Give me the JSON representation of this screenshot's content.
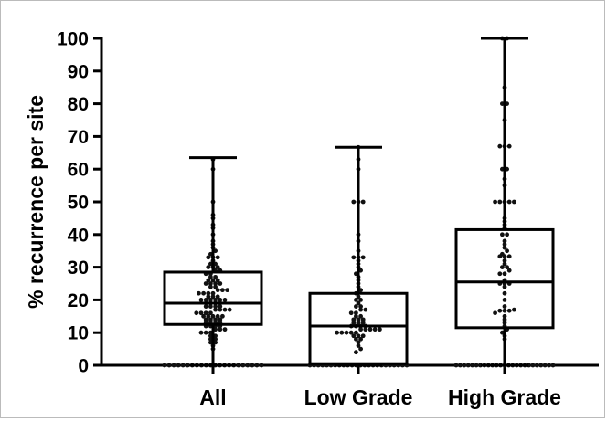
{
  "chart_data": {
    "type": "box",
    "title": "",
    "xlabel": "",
    "ylabel": "% recurrence per site",
    "ylim": [
      0,
      100
    ],
    "yticks": [
      "0",
      "10",
      "20",
      "30",
      "40",
      "50",
      "60",
      "70",
      "80",
      "90",
      "100"
    ],
    "grid": false,
    "categories": [
      "All",
      "Low Grade",
      "High Grade"
    ],
    "boxes": [
      {
        "name": "All",
        "min": 0,
        "q1": 12.5,
        "median": 19,
        "q3": 28.5,
        "max": 63.5
      },
      {
        "name": "Low Grade",
        "min": 0,
        "q1": 0.5,
        "median": 12,
        "q3": 22,
        "max": 66.7
      },
      {
        "name": "High Grade",
        "min": 0,
        "q1": 11.5,
        "median": 25.5,
        "q3": 41.5,
        "max": 100
      }
    ],
    "points": [
      {
        "name": "All",
        "values": [
          0,
          0,
          0,
          0,
          0,
          0,
          0,
          0,
          0,
          0,
          0,
          0,
          0,
          0,
          0,
          0,
          0,
          0,
          0,
          0,
          0,
          0,
          5,
          6,
          7,
          7,
          8,
          8,
          9,
          9,
          10,
          10,
          10,
          11,
          11,
          11,
          12,
          12,
          12,
          12,
          13,
          13,
          13,
          13,
          14,
          14,
          14,
          14,
          15,
          15,
          15,
          15,
          15,
          16,
          16,
          16,
          16,
          17,
          17,
          17,
          17,
          18,
          18,
          18,
          18,
          19,
          19,
          19,
          19,
          20,
          20,
          20,
          20,
          20,
          20,
          21,
          21,
          21,
          22,
          22,
          22,
          22,
          23,
          23,
          23,
          24,
          24,
          25,
          25,
          25,
          25,
          26,
          26,
          26,
          27,
          27,
          28,
          28,
          29,
          29,
          30,
          30,
          30,
          31,
          31,
          32,
          33,
          33,
          33,
          34,
          35,
          36,
          37,
          38,
          40,
          42,
          43,
          45,
          46,
          50,
          60,
          63
        ]
      },
      {
        "name": "Low Grade",
        "values": [
          0,
          0,
          0,
          0,
          0,
          0,
          0,
          0,
          0,
          0,
          0,
          0,
          0,
          0,
          0,
          0,
          0,
          0,
          0,
          0,
          0,
          0,
          0,
          0,
          4,
          5,
          6,
          7,
          8,
          8,
          9,
          9,
          9,
          10,
          10,
          10,
          10,
          10,
          11,
          11,
          11,
          11,
          11,
          12,
          12,
          12,
          12,
          13,
          13,
          13,
          14,
          14,
          14,
          15,
          15,
          16,
          16,
          17,
          17,
          18,
          18,
          19,
          20,
          20,
          21,
          22,
          23,
          24,
          25,
          26,
          27,
          28,
          29,
          30,
          31,
          32,
          33,
          33,
          33,
          35,
          38,
          40,
          50,
          50,
          50,
          60,
          63,
          66.7
        ]
      },
      {
        "name": "High Grade",
        "values": [
          0,
          0,
          0,
          0,
          0,
          0,
          0,
          0,
          0,
          0,
          0,
          0,
          0,
          0,
          0,
          0,
          0,
          0,
          0,
          0,
          0,
          0,
          0,
          0,
          0,
          8,
          9,
          10,
          11,
          12,
          13,
          14,
          15,
          16,
          16.7,
          16.7,
          16.7,
          17,
          18,
          20,
          22,
          24,
          25,
          25,
          25,
          26,
          28,
          28,
          29,
          30,
          30,
          31,
          32,
          33.3,
          33.3,
          33.3,
          34,
          35,
          36,
          37,
          38,
          40,
          40,
          42,
          43,
          44,
          45,
          50,
          50,
          50,
          50,
          50,
          55,
          57,
          60,
          60,
          67,
          67,
          67,
          75,
          80,
          80,
          85,
          100,
          100
        ]
      }
    ]
  }
}
